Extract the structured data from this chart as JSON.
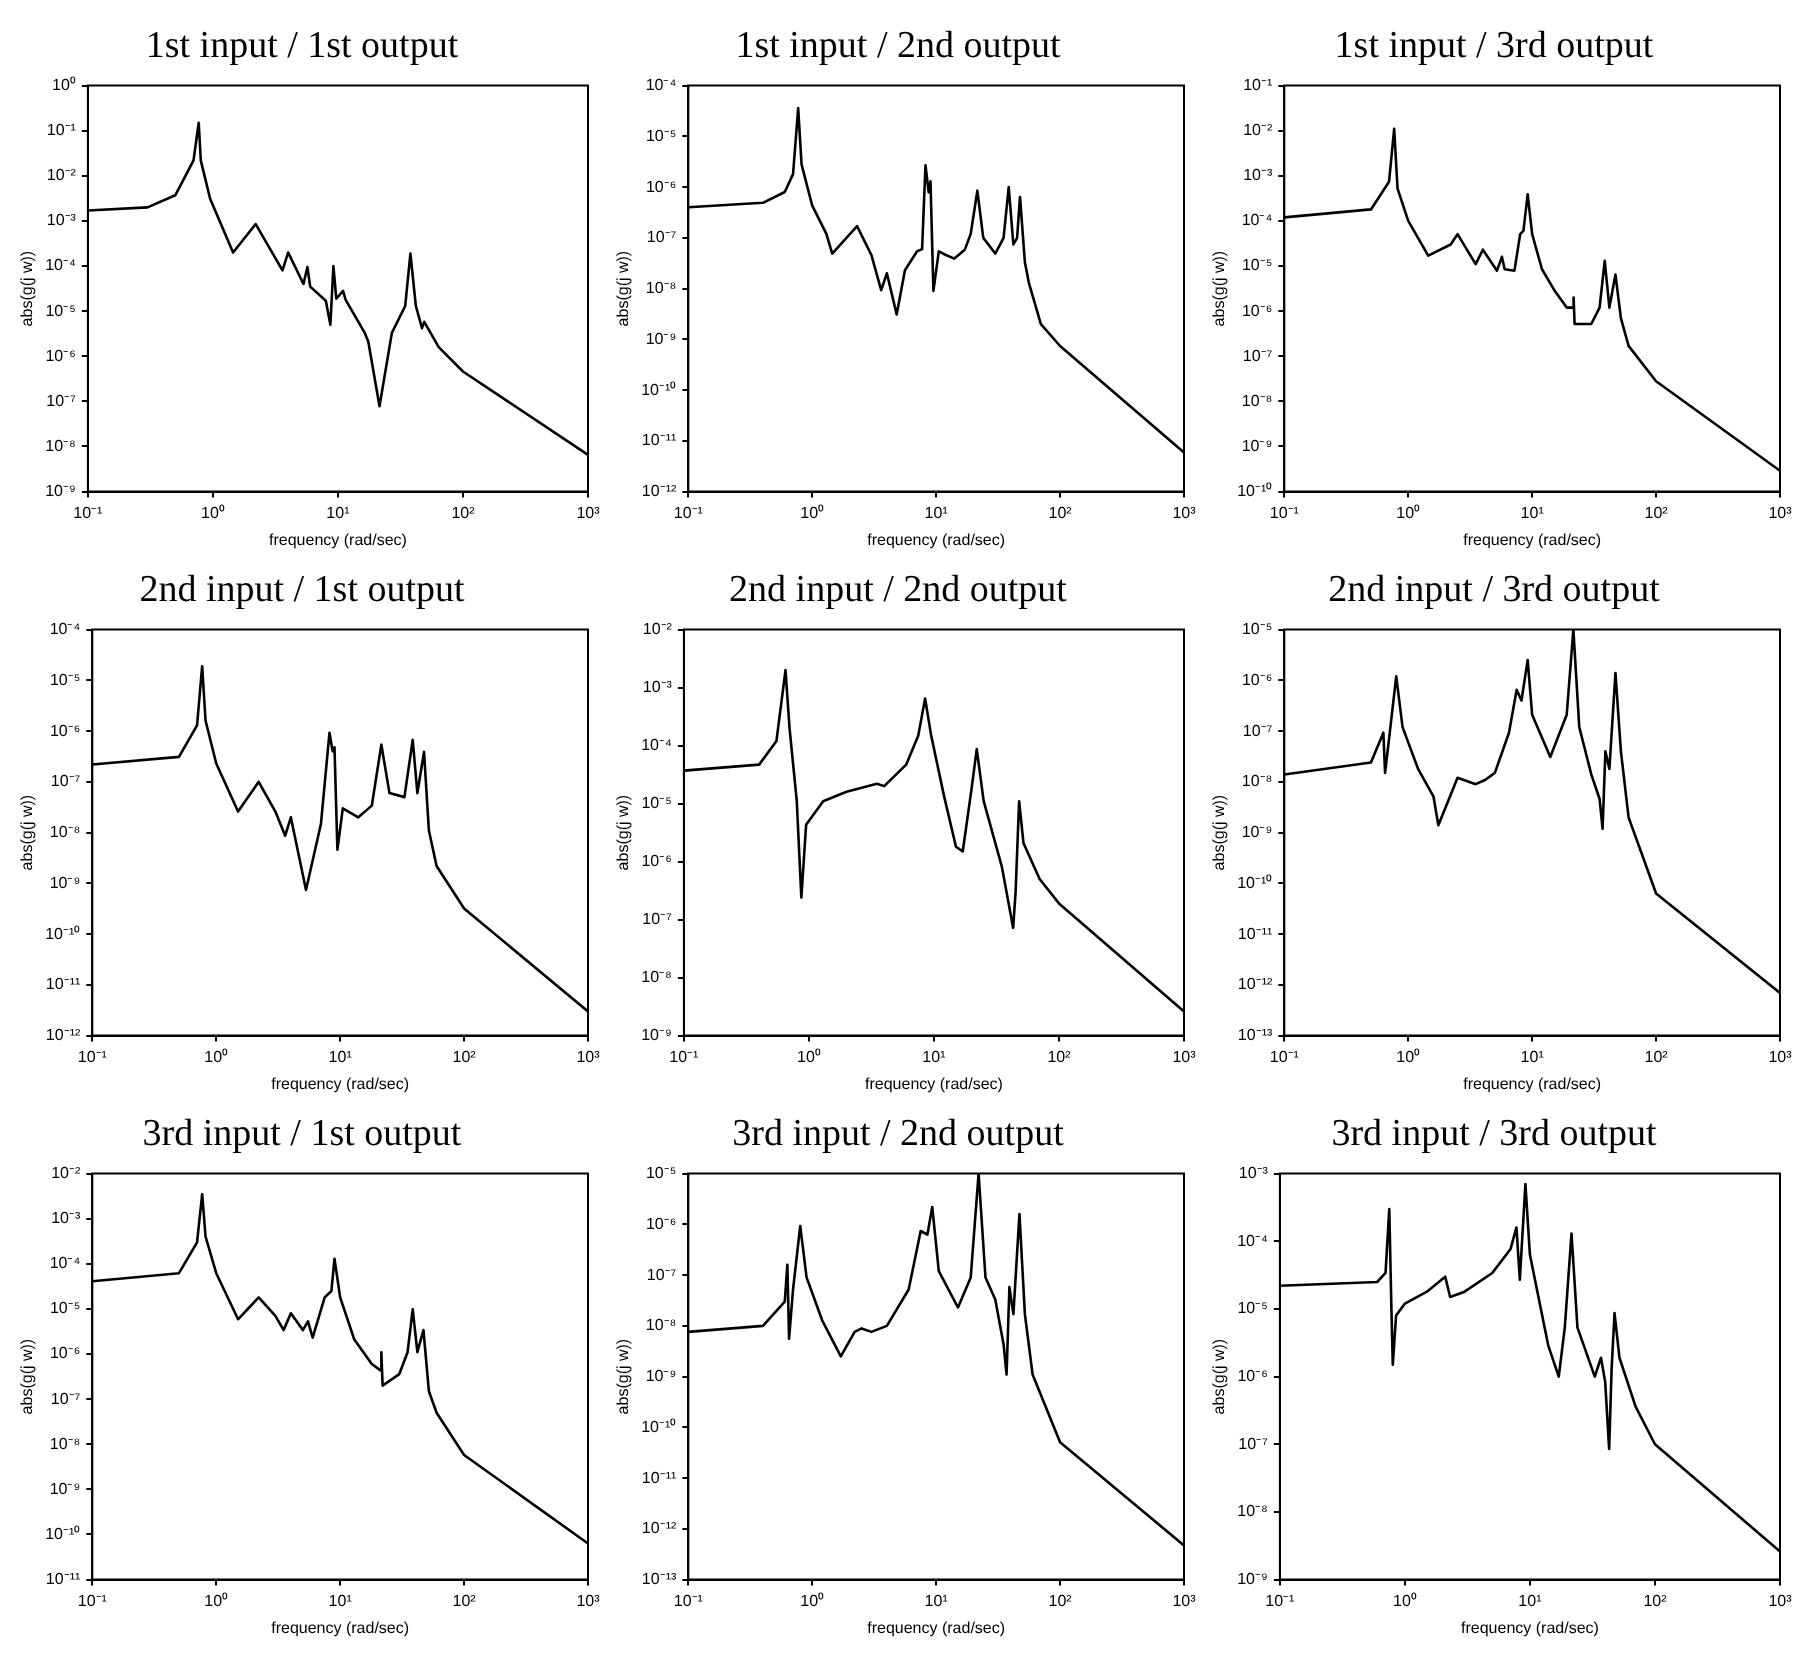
{
  "chart_data": [
    {
      "type": "line",
      "title": "1st input / 1st output",
      "xlabel": "frequency (rad/sec)",
      "ylabel": "abs(g(j w))",
      "color": "#000000",
      "log": "xy",
      "marker": "none",
      "grid": false,
      "x": [
        0.1,
        0.3,
        0.5,
        0.7,
        0.77,
        0.8,
        0.95,
        1.45,
        2.2,
        3.6,
        4.0,
        5.3,
        5.7,
        6.0,
        8.0,
        8.7,
        9.2,
        9.7,
        11,
        11.5,
        16.3,
        17.5,
        21.5,
        27,
        34.5,
        38,
        42,
        47,
        49,
        64,
        100,
        1000
      ],
      "values": [
        0.0017,
        0.002,
        0.0037,
        0.022,
        0.15,
        0.022,
        0.0031,
        0.0002,
        0.00085,
        8e-05,
        0.0002,
        4e-05,
        9.5e-05,
        3.5e-05,
        1.7e-05,
        5e-06,
        0.0001,
        1.9e-05,
        2.8e-05,
        1.8e-05,
        3.4e-06,
        2.1e-06,
        7.8e-08,
        3.3e-06,
        1.3e-05,
        0.00019,
        1.3e-05,
        4.2e-06,
        5.8e-06,
        1.6e-06,
        4.6e-07,
        6.5e-09
      ],
      "xlim": [
        0.1,
        1000
      ],
      "xticks": [
        {
          "value": 0.1,
          "label": "10⁻¹"
        },
        {
          "value": 1,
          "label": "10⁰"
        },
        {
          "value": 10,
          "label": "10¹"
        },
        {
          "value": 100,
          "label": "10²"
        },
        {
          "value": 1000,
          "label": "10³"
        }
      ],
      "ylim": [
        1e-09,
        1
      ],
      "yticks": [
        {
          "value": 1e-09,
          "label": "10⁻⁹"
        },
        {
          "value": 1e-08,
          "label": "10⁻⁸"
        },
        {
          "value": 1e-07,
          "label": "10⁻⁷"
        },
        {
          "value": 1e-06,
          "label": "10⁻⁶"
        },
        {
          "value": 1e-05,
          "label": "10⁻⁵"
        },
        {
          "value": 0.0001,
          "label": "10⁻⁴"
        },
        {
          "value": 0.001,
          "label": "10⁻³"
        },
        {
          "value": 0.01,
          "label": "10⁻²"
        },
        {
          "value": 0.1,
          "label": "10⁻¹"
        },
        {
          "value": 1,
          "label": "10⁰"
        }
      ]
    },
    {
      "type": "line",
      "title": "1st input / 2nd output",
      "xlabel": "frequency (rad/sec)",
      "ylabel": "abs(g(j w))",
      "color": "#000000",
      "log": "xy",
      "marker": "none",
      "grid": false,
      "x": [
        0.1,
        0.4,
        0.6,
        0.7,
        0.77,
        0.82,
        1.0,
        1.3,
        1.45,
        2.3,
        3.0,
        3.6,
        4.0,
        4.8,
        5.6,
        7.0,
        7.7,
        8.2,
        8.7,
        9.0,
        9.5,
        10.5,
        12,
        14,
        17,
        19,
        21.5,
        24,
        30,
        35,
        38.5,
        42,
        45,
        47.5,
        52,
        56,
        70,
        100,
        1000
      ],
      "values": [
        4e-07,
        4.9e-07,
        8e-07,
        1.8e-06,
        3.6e-05,
        2.8e-06,
        4.3e-07,
        1.2e-07,
        4.9e-08,
        1.7e-07,
        4.6e-08,
        9.3e-09,
        2e-08,
        3.1e-09,
        2.3e-08,
        5.4e-08,
        6e-08,
        2.7e-06,
        7.9e-07,
        1.3e-06,
        9e-09,
        5.4e-08,
        4.6e-08,
        3.9e-08,
        5.8e-08,
        1.2e-07,
        8.5e-07,
        1e-07,
        4.9e-08,
        1e-07,
        1e-06,
        7.4e-08,
        1e-07,
        6.4e-07,
        3.3e-08,
        1.3e-08,
        2e-09,
        7.4e-10,
        5.9e-12
      ],
      "xlim": [
        0.1,
        1000
      ],
      "xticks": [
        {
          "value": 0.1,
          "label": "10⁻¹"
        },
        {
          "value": 1,
          "label": "10⁰"
        },
        {
          "value": 10,
          "label": "10¹"
        },
        {
          "value": 100,
          "label": "10²"
        },
        {
          "value": 1000,
          "label": "10³"
        }
      ],
      "ylim": [
        1e-12,
        0.0001
      ],
      "yticks": [
        {
          "value": 1e-12,
          "label": "10⁻¹²"
        },
        {
          "value": 1e-11,
          "label": "10⁻¹¹"
        },
        {
          "value": 1e-10,
          "label": "10⁻¹⁰"
        },
        {
          "value": 1e-09,
          "label": "10⁻⁹"
        },
        {
          "value": 1e-08,
          "label": "10⁻⁸"
        },
        {
          "value": 1e-07,
          "label": "10⁻⁷"
        },
        {
          "value": 1e-06,
          "label": "10⁻⁶"
        },
        {
          "value": 1e-05,
          "label": "10⁻⁵"
        },
        {
          "value": 0.0001,
          "label": "10⁻⁴"
        }
      ]
    },
    {
      "type": "line",
      "title": "1st input / 3rd output",
      "xlabel": "frequency (rad/sec)",
      "ylabel": "abs(g(j w))",
      "color": "#000000",
      "log": "xy",
      "marker": "none",
      "grid": false,
      "x": [
        0.1,
        0.5,
        0.7,
        0.77,
        0.82,
        1.0,
        1.45,
        2.2,
        2.5,
        3.5,
        4.0,
        5.2,
        5.7,
        6,
        7.2,
        8.0,
        8.5,
        9.2,
        10,
        12,
        15,
        19,
        21.3,
        21.6,
        22,
        30,
        35,
        38.5,
        42,
        47,
        52,
        60,
        100,
        1000
      ],
      "values": [
        0.00012,
        0.00018,
        0.00074,
        0.011,
        0.00052,
        0.0001,
        1.7e-05,
        3e-05,
        5.1e-05,
        1.1e-05,
        2.3e-05,
        7.9e-06,
        1.6e-05,
        8.5e-06,
        7.9e-06,
        5.1e-05,
        6e-05,
        0.00039,
        5.1e-05,
        8.5e-06,
        3e-06,
        1.2e-06,
        1.2e-06,
        2e-06,
        5.2e-07,
        5.2e-07,
        1.2e-06,
        1.3e-05,
        1.2e-06,
        6.5e-06,
        7e-07,
        1.7e-07,
        2.8e-08,
        2.9e-10
      ],
      "xlim": [
        0.1,
        1000
      ],
      "xticks": [
        {
          "value": 0.1,
          "label": "10⁻¹"
        },
        {
          "value": 1,
          "label": "10⁰"
        },
        {
          "value": 10,
          "label": "10¹"
        },
        {
          "value": 100,
          "label": "10²"
        },
        {
          "value": 1000,
          "label": "10³"
        }
      ],
      "ylim": [
        1e-10,
        0.1
      ],
      "yticks": [
        {
          "value": 1e-10,
          "label": "10⁻¹⁰"
        },
        {
          "value": 1e-09,
          "label": "10⁻⁹"
        },
        {
          "value": 1e-08,
          "label": "10⁻⁸"
        },
        {
          "value": 1e-07,
          "label": "10⁻⁷"
        },
        {
          "value": 1e-06,
          "label": "10⁻⁶"
        },
        {
          "value": 1e-05,
          "label": "10⁻⁵"
        },
        {
          "value": 0.0001,
          "label": "10⁻⁴"
        },
        {
          "value": 0.001,
          "label": "10⁻³"
        },
        {
          "value": 0.01,
          "label": "10⁻²"
        },
        {
          "value": 0.1,
          "label": "10⁻¹"
        }
      ]
    },
    {
      "type": "line",
      "title": "2nd input / 1st output",
      "xlabel": "frequency (rad/sec)",
      "ylabel": "abs(g(j w))",
      "color": "#000000",
      "log": "xy",
      "marker": "none",
      "grid": false,
      "x": [
        0.1,
        0.5,
        0.7,
        0.77,
        0.82,
        1.0,
        1.5,
        2.2,
        3.0,
        3.6,
        4.0,
        5.3,
        7,
        8.2,
        8.7,
        9.0,
        9.5,
        10.5,
        14,
        18,
        21.5,
        25,
        33,
        38.5,
        42,
        47.5,
        52,
        60,
        100,
        1000
      ],
      "values": [
        2.2e-07,
        3.1e-07,
        1.3e-06,
        1.9e-05,
        1.6e-06,
        2.3e-07,
        2.6e-08,
        1e-07,
        2.6e-08,
        8.7e-09,
        2e-08,
        7.4e-10,
        1.5e-08,
        9.3e-07,
        4e-07,
        4.8e-07,
        4.6e-09,
        3e-08,
        2e-08,
        3.4e-08,
        5.4e-07,
        6e-08,
        5e-08,
        6.7e-07,
        6e-08,
        3.9e-07,
        1.1e-08,
        2.2e-09,
        3.2e-10,
        3e-12
      ],
      "xlim": [
        0.1,
        1000
      ],
      "xticks": [
        {
          "value": 0.1,
          "label": "10⁻¹"
        },
        {
          "value": 1,
          "label": "10⁰"
        },
        {
          "value": 10,
          "label": "10¹"
        },
        {
          "value": 100,
          "label": "10²"
        },
        {
          "value": 1000,
          "label": "10³"
        }
      ],
      "ylim": [
        1e-12,
        0.0001
      ],
      "yticks": [
        {
          "value": 1e-12,
          "label": "10⁻¹²"
        },
        {
          "value": 1e-11,
          "label": "10⁻¹¹"
        },
        {
          "value": 1e-10,
          "label": "10⁻¹⁰"
        },
        {
          "value": 1e-09,
          "label": "10⁻⁹"
        },
        {
          "value": 1e-08,
          "label": "10⁻⁸"
        },
        {
          "value": 1e-07,
          "label": "10⁻⁷"
        },
        {
          "value": 1e-06,
          "label": "10⁻⁶"
        },
        {
          "value": 1e-05,
          "label": "10⁻⁵"
        },
        {
          "value": 0.0001,
          "label": "10⁻⁴"
        }
      ]
    },
    {
      "type": "line",
      "title": "2nd input / 2nd output",
      "xlabel": "frequency (rad/sec)",
      "ylabel": "abs(g(j w))",
      "color": "#000000",
      "log": "xy",
      "marker": "none",
      "grid": false,
      "x": [
        0.1,
        0.4,
        0.55,
        0.65,
        0.7,
        0.8,
        0.87,
        0.95,
        1.3,
        2.0,
        3.5,
        4.0,
        6,
        7.5,
        8.5,
        9.5,
        12,
        15,
        17,
        20,
        22,
        25,
        35,
        43,
        45,
        48,
        52,
        70,
        100,
        1000
      ],
      "values": [
        3.7e-05,
        4.7e-05,
        0.00012,
        0.002,
        0.0002,
        1.1e-05,
        2.4e-07,
        4.3e-06,
        1.1e-05,
        1.6e-05,
        2.2e-05,
        2e-05,
        4.7e-05,
        0.00015,
        0.00065,
        0.00015,
        1.4e-05,
        1.8e-06,
        1.5e-06,
        1.8e-05,
        8.7e-05,
        1.1e-05,
        8e-07,
        7.2e-08,
        3e-07,
        1.1e-05,
        2.1e-06,
        5e-07,
        1.9e-07,
        2.6e-09
      ],
      "xlim": [
        0.1,
        1000
      ],
      "xticks": [
        {
          "value": 0.1,
          "label": "10⁻¹"
        },
        {
          "value": 1,
          "label": "10⁰"
        },
        {
          "value": 10,
          "label": "10¹"
        },
        {
          "value": 100,
          "label": "10²"
        },
        {
          "value": 1000,
          "label": "10³"
        }
      ],
      "ylim": [
        1e-09,
        0.01
      ],
      "yticks": [
        {
          "value": 1e-09,
          "label": "10⁻⁹"
        },
        {
          "value": 1e-08,
          "label": "10⁻⁸"
        },
        {
          "value": 1e-07,
          "label": "10⁻⁷"
        },
        {
          "value": 1e-06,
          "label": "10⁻⁶"
        },
        {
          "value": 1e-05,
          "label": "10⁻⁵"
        },
        {
          "value": 0.0001,
          "label": "10⁻⁴"
        },
        {
          "value": 0.001,
          "label": "10⁻³"
        },
        {
          "value": 0.01,
          "label": "10⁻²"
        }
      ]
    },
    {
      "type": "line",
      "title": "2nd input / 3rd output",
      "xlabel": "frequency (rad/sec)",
      "ylabel": "abs(g(j w))",
      "color": "#000000",
      "log": "xy",
      "marker": "none",
      "grid": false,
      "x": [
        0.1,
        0.5,
        0.63,
        0.65,
        0.7,
        0.8,
        0.9,
        1.2,
        1.6,
        1.75,
        2.5,
        3.5,
        4.2,
        5,
        6.5,
        7.5,
        8.2,
        9.2,
        10,
        14,
        19,
        21.5,
        24,
        30,
        35,
        37,
        39,
        42,
        47,
        52,
        60,
        100,
        1000
      ],
      "values": [
        1.4e-08,
        2.4e-08,
        9.3e-08,
        1.5e-08,
        7e-08,
        1.2e-06,
        1.2e-07,
        1.8e-08,
        5.1e-09,
        1.4e-09,
        1.2e-08,
        9e-09,
        1.1e-08,
        1.5e-08,
        9.3e-08,
        6.5e-07,
        4e-07,
        2.5e-06,
        2.1e-07,
        3.1e-08,
        2.1e-07,
        1e-05,
        1.2e-07,
        1.4e-08,
        4.6e-09,
        1.2e-09,
        4e-08,
        1.8e-08,
        1.4e-06,
        4e-08,
        2e-09,
        6.3e-11,
        6.9e-13
      ],
      "xlim": [
        0.1,
        1000
      ],
      "xticks": [
        {
          "value": 0.1,
          "label": "10⁻¹"
        },
        {
          "value": 1,
          "label": "10⁰"
        },
        {
          "value": 10,
          "label": "10¹"
        },
        {
          "value": 100,
          "label": "10²"
        },
        {
          "value": 1000,
          "label": "10³"
        }
      ],
      "ylim": [
        1e-13,
        1e-05
      ],
      "yticks": [
        {
          "value": 1e-13,
          "label": "10⁻¹³"
        },
        {
          "value": 1e-12,
          "label": "10⁻¹²"
        },
        {
          "value": 1e-11,
          "label": "10⁻¹¹"
        },
        {
          "value": 1e-10,
          "label": "10⁻¹⁰"
        },
        {
          "value": 1e-09,
          "label": "10⁻⁹"
        },
        {
          "value": 1e-08,
          "label": "10⁻⁸"
        },
        {
          "value": 1e-07,
          "label": "10⁻⁷"
        },
        {
          "value": 1e-06,
          "label": "10⁻⁶"
        },
        {
          "value": 1e-05,
          "label": "10⁻⁵"
        }
      ]
    },
    {
      "type": "line",
      "title": "3rd input / 1st output",
      "xlabel": "frequency (rad/sec)",
      "ylabel": "abs(g(j w))",
      "color": "#000000",
      "log": "xy",
      "marker": "none",
      "grid": false,
      "x": [
        0.1,
        0.5,
        0.7,
        0.77,
        0.82,
        1.0,
        1.5,
        2.2,
        3.0,
        3.5,
        4.0,
        5.0,
        5.5,
        6.0,
        7.5,
        8.5,
        9.0,
        10,
        13,
        18,
        21,
        21.5,
        22,
        30,
        35,
        38.5,
        42,
        47,
        52,
        60,
        100,
        1000
      ],
      "values": [
        4.1e-05,
        6.2e-05,
        0.0003,
        0.0035,
        0.0004,
        6.2e-05,
        5.9e-06,
        1.8e-05,
        7e-06,
        3.4e-06,
        8e-06,
        3.4e-06,
        5.3e-06,
        2.3e-06,
        1.8e-05,
        2.5e-05,
        0.00013,
        1.8e-05,
        2.1e-06,
        6e-07,
        4.4e-07,
        1.1e-06,
        2e-07,
        3.6e-07,
        1.1e-06,
        9.8e-06,
        1.1e-06,
        3.4e-06,
        1.5e-07,
        5e-08,
        5.8e-09,
        6.3e-11
      ],
      "xlim": [
        0.1,
        1000
      ],
      "xticks": [
        {
          "value": 0.1,
          "label": "10⁻¹"
        },
        {
          "value": 1,
          "label": "10⁰"
        },
        {
          "value": 10,
          "label": "10¹"
        },
        {
          "value": 100,
          "label": "10²"
        },
        {
          "value": 1000,
          "label": "10³"
        }
      ],
      "ylim": [
        1e-11,
        0.01
      ],
      "yticks": [
        {
          "value": 1e-11,
          "label": "10⁻¹¹"
        },
        {
          "value": 1e-10,
          "label": "10⁻¹⁰"
        },
        {
          "value": 1e-09,
          "label": "10⁻⁹"
        },
        {
          "value": 1e-08,
          "label": "10⁻⁸"
        },
        {
          "value": 1e-07,
          "label": "10⁻⁷"
        },
        {
          "value": 1e-06,
          "label": "10⁻⁶"
        },
        {
          "value": 1e-05,
          "label": "10⁻⁵"
        },
        {
          "value": 0.0001,
          "label": "10⁻⁴"
        },
        {
          "value": 0.001,
          "label": "10⁻³"
        },
        {
          "value": 0.01,
          "label": "10⁻²"
        }
      ]
    },
    {
      "type": "line",
      "title": "3rd input / 2nd output",
      "xlabel": "frequency (rad/sec)",
      "ylabel": "abs(g(j w))",
      "color": "#000000",
      "log": "xy",
      "marker": "none",
      "grid": false,
      "x": [
        0.1,
        0.4,
        0.6,
        0.63,
        0.65,
        0.7,
        0.8,
        0.9,
        1.2,
        1.7,
        2.2,
        2.5,
        3.0,
        4.0,
        6.0,
        7.5,
        8.5,
        9.3,
        10.5,
        15,
        19,
        22,
        25,
        30,
        35,
        37,
        39,
        42,
        47,
        52,
        60,
        100,
        1000
      ],
      "values": [
        7.6e-09,
        1e-08,
        3e-08,
        1.6e-07,
        5.6e-09,
        5.2e-08,
        9.3e-07,
        9e-08,
        1.3e-08,
        2.5e-09,
        7.6e-09,
        8.9e-09,
        7.6e-09,
        1e-08,
        5.2e-08,
        7.4e-07,
        6.3e-07,
        2.2e-06,
        1.2e-07,
        2.3e-08,
        9e-08,
        1e-05,
        9e-08,
        3.3e-08,
        4.3e-09,
        1.1e-09,
        5.8e-08,
        1.7e-08,
        1.6e-06,
        1.7e-08,
        1.1e-09,
        5.1e-11,
        4.7e-13
      ],
      "xlim": [
        0.1,
        1000
      ],
      "xticks": [
        {
          "value": 0.1,
          "label": "10⁻¹"
        },
        {
          "value": 1,
          "label": "10⁰"
        },
        {
          "value": 10,
          "label": "10¹"
        },
        {
          "value": 100,
          "label": "10²"
        },
        {
          "value": 1000,
          "label": "10³"
        }
      ],
      "ylim": [
        1e-13,
        1e-05
      ],
      "yticks": [
        {
          "value": 1e-13,
          "label": "10⁻¹³"
        },
        {
          "value": 1e-12,
          "label": "10⁻¹²"
        },
        {
          "value": 1e-11,
          "label": "10⁻¹¹"
        },
        {
          "value": 1e-10,
          "label": "10⁻¹⁰"
        },
        {
          "value": 1e-09,
          "label": "10⁻⁹"
        },
        {
          "value": 1e-08,
          "label": "10⁻⁸"
        },
        {
          "value": 1e-07,
          "label": "10⁻⁷"
        },
        {
          "value": 1e-06,
          "label": "10⁻⁶"
        },
        {
          "value": 1e-05,
          "label": "10⁻⁵"
        }
      ]
    },
    {
      "type": "line",
      "title": "3rd input / 3rd output",
      "xlabel": "frequency (rad/sec)",
      "ylabel": "abs(g(j w))",
      "color": "#000000",
      "log": "xy",
      "marker": "none",
      "grid": false,
      "x": [
        0.1,
        0.6,
        0.7,
        0.75,
        0.78,
        0.8,
        0.85,
        1.0,
        1.5,
        2.1,
        2.3,
        3.0,
        5,
        7,
        7.8,
        8.3,
        9.2,
        10,
        14,
        17,
        19,
        21.5,
        24,
        33,
        37,
        40,
        43,
        45,
        47.5,
        52,
        70,
        100,
        1000
      ],
      "values": [
        2.2e-05,
        2.5e-05,
        3.4e-05,
        0.0003,
        1e-05,
        1.5e-06,
        8e-06,
        1.2e-05,
        1.8e-05,
        3e-05,
        1.5e-05,
        1.8e-05,
        3.4e-05,
        7.7e-05,
        0.00016,
        2.7e-05,
        0.0007,
        6.3e-05,
        2.9e-06,
        1e-06,
        5.3e-06,
        0.00013,
        5.3e-06,
        1e-06,
        1.9e-06,
        8.3e-07,
        8.5e-08,
        1.3e-06,
        8.7e-06,
        1.9e-06,
        3.6e-07,
        1e-07,
        2.6e-09
      ],
      "xlim": [
        0.1,
        1000
      ],
      "xticks": [
        {
          "value": 0.1,
          "label": "10⁻¹"
        },
        {
          "value": 1,
          "label": "10⁰"
        },
        {
          "value": 10,
          "label": "10¹"
        },
        {
          "value": 100,
          "label": "10²"
        },
        {
          "value": 1000,
          "label": "10³"
        }
      ],
      "ylim": [
        1e-09,
        0.001
      ],
      "yticks": [
        {
          "value": 1e-09,
          "label": "10⁻⁹"
        },
        {
          "value": 1e-08,
          "label": "10⁻⁸"
        },
        {
          "value": 1e-07,
          "label": "10⁻⁷"
        },
        {
          "value": 1e-06,
          "label": "10⁻⁶"
        },
        {
          "value": 1e-05,
          "label": "10⁻⁵"
        },
        {
          "value": 0.0001,
          "label": "10⁻⁴"
        },
        {
          "value": 0.001,
          "label": "10⁻³"
        }
      ]
    }
  ]
}
